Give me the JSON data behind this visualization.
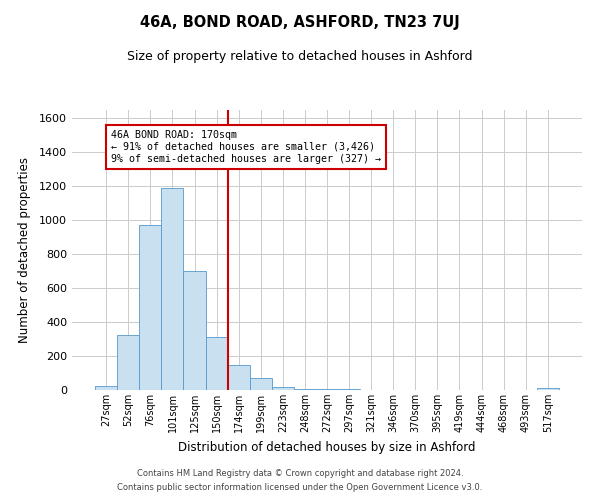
{
  "title": "46A, BOND ROAD, ASHFORD, TN23 7UJ",
  "subtitle": "Size of property relative to detached houses in Ashford",
  "xlabel": "Distribution of detached houses by size in Ashford",
  "ylabel": "Number of detached properties",
  "bin_labels": [
    "27sqm",
    "52sqm",
    "76sqm",
    "101sqm",
    "125sqm",
    "150sqm",
    "174sqm",
    "199sqm",
    "223sqm",
    "248sqm",
    "272sqm",
    "297sqm",
    "321sqm",
    "346sqm",
    "370sqm",
    "395sqm",
    "419sqm",
    "444sqm",
    "468sqm",
    "493sqm",
    "517sqm"
  ],
  "bar_heights": [
    25,
    325,
    975,
    1190,
    700,
    310,
    150,
    70,
    20,
    5,
    5,
    5,
    0,
    0,
    0,
    0,
    0,
    0,
    0,
    0,
    10
  ],
  "bar_color": "#c8e0f0",
  "bar_edge_color": "#5599cc",
  "vline_color": "#cc0000",
  "ylim": [
    0,
    1650
  ],
  "yticks": [
    0,
    200,
    400,
    600,
    800,
    1000,
    1200,
    1400,
    1600
  ],
  "annotation_title": "46A BOND ROAD: 170sqm",
  "annotation_line1": "← 91% of detached houses are smaller (3,426)",
  "annotation_line2": "9% of semi-detached houses are larger (327) →",
  "annotation_box_color": "#cc0000",
  "footer_line1": "Contains HM Land Registry data © Crown copyright and database right 2024.",
  "footer_line2": "Contains public sector information licensed under the Open Government Licence v3.0.",
  "background_color": "#ffffff",
  "grid_color": "#cccccc"
}
